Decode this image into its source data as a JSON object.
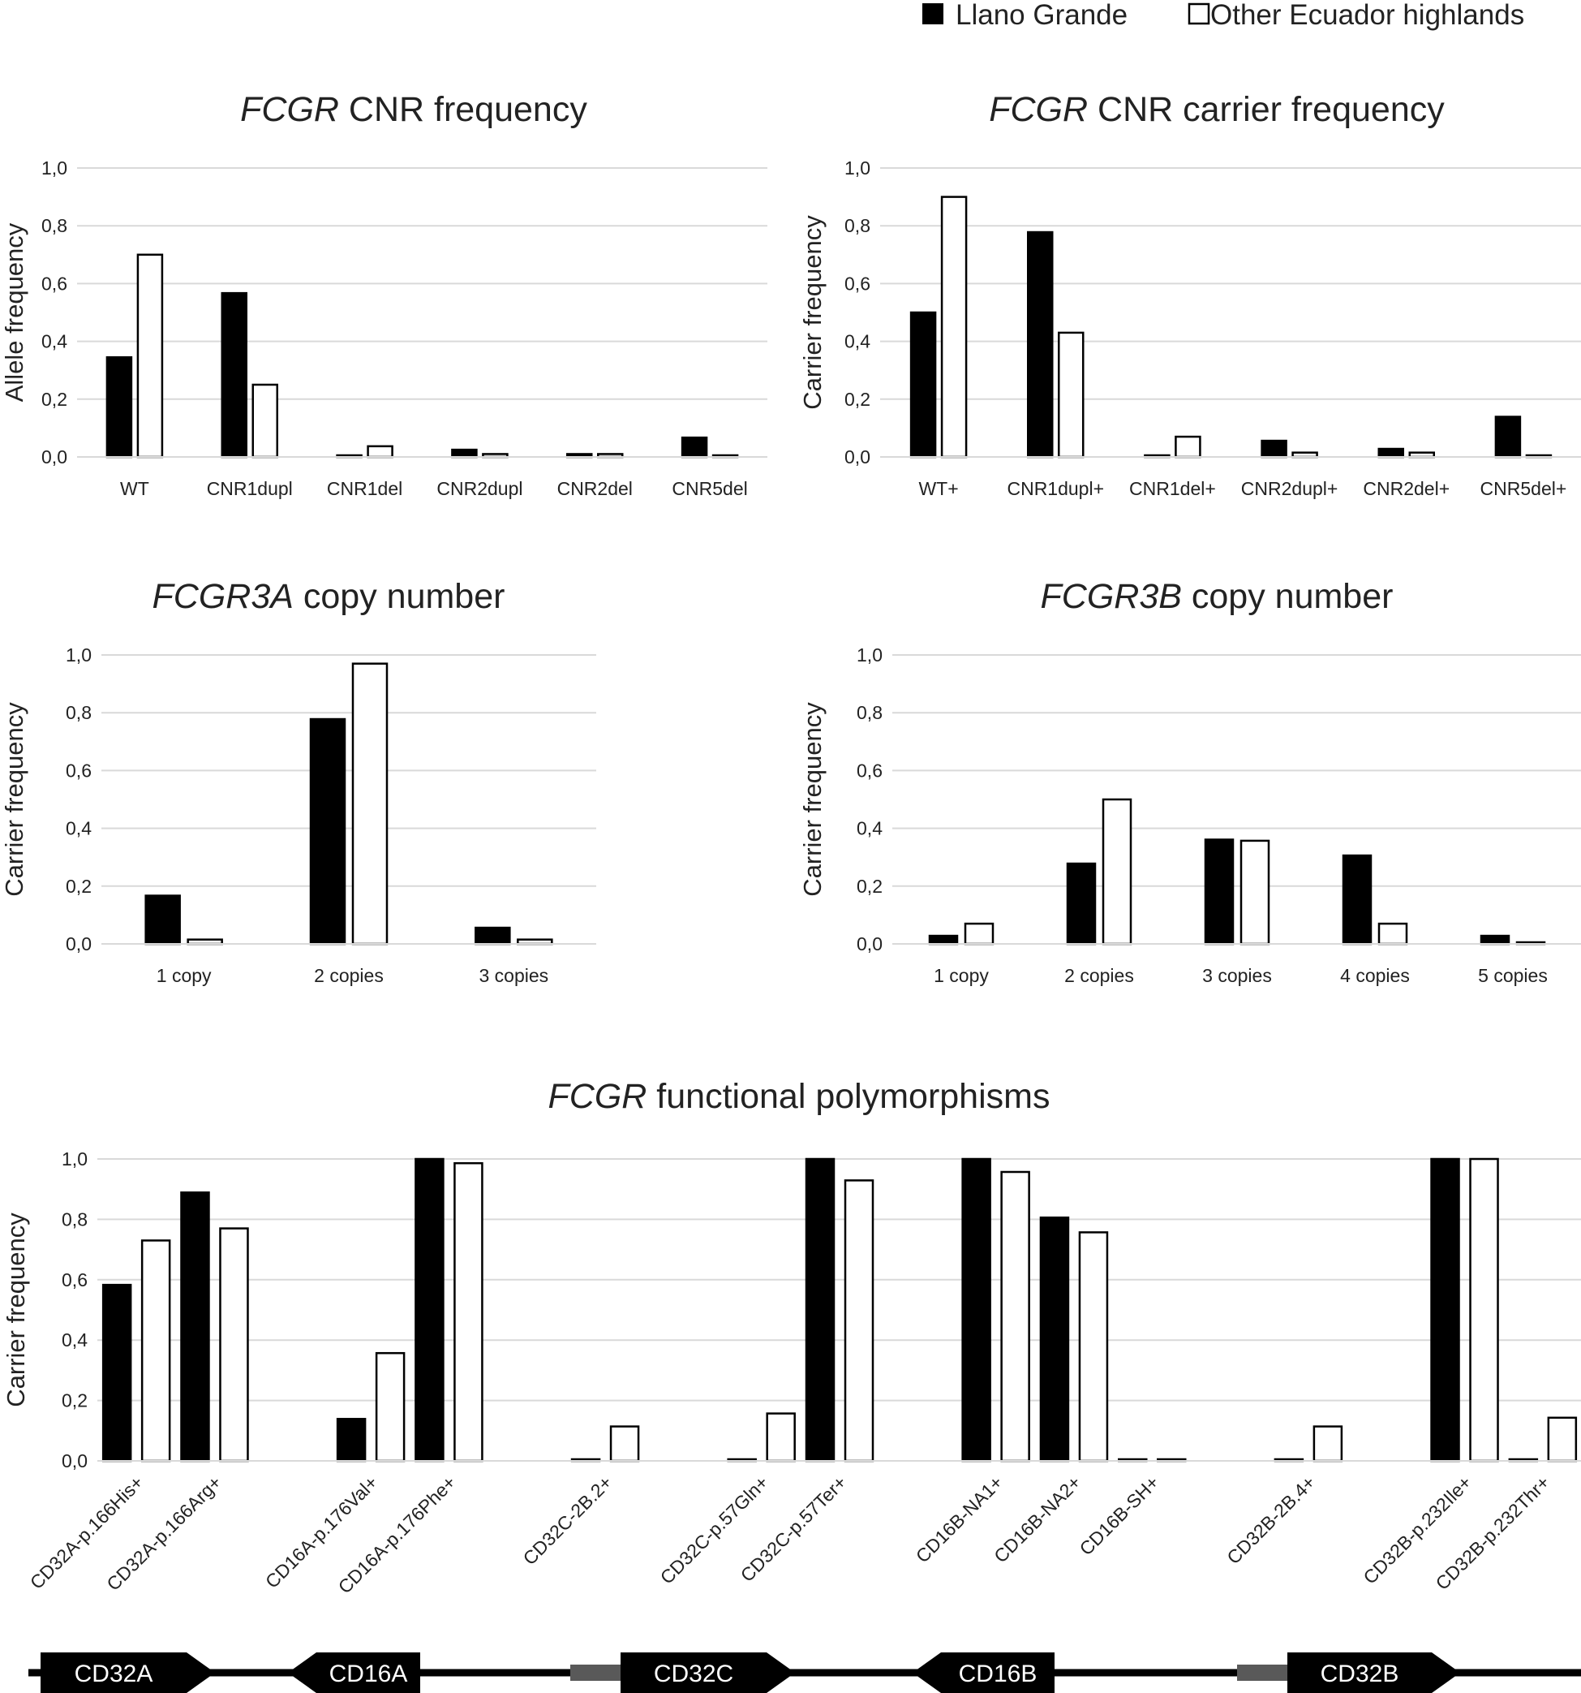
{
  "legend": {
    "items": [
      {
        "label": "Llano Grande",
        "fill": "#000000"
      },
      {
        "label": "Other Ecuador highlands",
        "fill": "#ffffff"
      }
    ]
  },
  "colors": {
    "series_a": "#000000",
    "series_b": "#ffffff",
    "stroke": "#000000",
    "grid": "#d9d9d9",
    "gene_body": "#000000",
    "pseudo": "#595959"
  },
  "chart_data": [
    {
      "id": "cnr",
      "type": "bar",
      "title_italic": "FCGR",
      "title_rest": " CNR frequency",
      "ylabel": "Allele frequency",
      "ylim": [
        0,
        1
      ],
      "yticks": [
        "0,0",
        "0,2",
        "0,4",
        "0,6",
        "0,8",
        "1,0"
      ],
      "categories": [
        "WT",
        "CNR1dupl",
        "CNR1del",
        "CNR2dupl",
        "CNR2del",
        "CNR5del"
      ],
      "series": [
        {
          "name": "Llano Grande",
          "values": [
            0.345,
            0.567,
            0,
            0.025,
            0.01,
            0.067
          ]
        },
        {
          "name": "Other Ecuador highlands",
          "values": [
            0.7,
            0.25,
            0.037,
            0.01,
            0.01,
            0
          ]
        }
      ]
    },
    {
      "id": "cnrc",
      "type": "bar",
      "title_italic": "FCGR",
      "title_rest": " CNR carrier frequency",
      "ylabel": "Carrier frequency",
      "ylim": [
        0,
        1
      ],
      "yticks": [
        "0,0",
        "0,2",
        "0,4",
        "0,6",
        "0,8",
        "1,0"
      ],
      "categories": [
        "WT+",
        "CNR1dupl+",
        "CNR1del+",
        "CNR2dupl+",
        "CNR2del+",
        "CNR5del+"
      ],
      "series": [
        {
          "name": "Llano Grande",
          "values": [
            0.5,
            0.778,
            0,
            0.056,
            0.028,
            0.139
          ]
        },
        {
          "name": "Other Ecuador highlands",
          "values": [
            0.9,
            0.43,
            0.07,
            0.015,
            0.015,
            0
          ]
        }
      ]
    },
    {
      "id": "cn3a",
      "type": "bar",
      "title_italic": "FCGR3A",
      "title_rest": " copy number",
      "ylabel": "Carrier frequency",
      "ylim": [
        0,
        1
      ],
      "yticks": [
        "0,0",
        "0,2",
        "0,4",
        "0,6",
        "0,8",
        "1,0"
      ],
      "categories": [
        "1 copy",
        "2 copies",
        "3 copies"
      ],
      "series": [
        {
          "name": "Llano Grande",
          "values": [
            0.167,
            0.778,
            0.056
          ]
        },
        {
          "name": "Other Ecuador highlands",
          "values": [
            0.015,
            0.97,
            0.015
          ]
        }
      ]
    },
    {
      "id": "cn3b",
      "type": "bar",
      "title_italic": "FCGR3B",
      "title_rest": " copy number",
      "ylabel": "Carrier frequency",
      "ylim": [
        0,
        1
      ],
      "yticks": [
        "0,0",
        "0,2",
        "0,4",
        "0,6",
        "0,8",
        "1,0"
      ],
      "categories": [
        "1 copy",
        "2 copies",
        "3 copies",
        "4 copies",
        "5 copies"
      ],
      "series": [
        {
          "name": "Llano Grande",
          "values": [
            0.028,
            0.278,
            0.361,
            0.306,
            0.028
          ]
        },
        {
          "name": "Other Ecuador highlands",
          "values": [
            0.07,
            0.5,
            0.357,
            0.07,
            0
          ]
        }
      ]
    },
    {
      "id": "poly",
      "type": "bar",
      "title_italic": "FCGR",
      "title_rest": " functional polymorphisms",
      "ylabel": "Carrier frequency",
      "ylim": [
        0,
        1
      ],
      "yticks": [
        "0,0",
        "0,2",
        "0,4",
        "0,6",
        "0,8",
        "1,0"
      ],
      "categories": [
        "CD32A-p.166His+",
        "CD32A-p.166Arg+",
        "",
        "CD16A-p.176Val+",
        "CD16A-p.176Phe+",
        "",
        "CD32C-2B.2+",
        "",
        "CD32C-p.57Gln+",
        "CD32C-p.57Ter+",
        "",
        "CD16B-NA1+",
        "CD16B-NA2+",
        "CD16B-SH+",
        "",
        "CD32B-2B.4+",
        "",
        "CD32B-p.232Ile+",
        "CD32B-p.232Thr+"
      ],
      "series": [
        {
          "name": "Llano Grande",
          "values": [
            0.583,
            0.889,
            null,
            0.139,
            1.0,
            null,
            0,
            null,
            0,
            1.0,
            null,
            1.0,
            0.806,
            0,
            null,
            0,
            null,
            1.0,
            0
          ]
        },
        {
          "name": "Other Ecuador highlands",
          "values": [
            0.73,
            0.77,
            null,
            0.357,
            0.986,
            null,
            0.114,
            null,
            0.157,
            0.929,
            null,
            0.957,
            0.757,
            0,
            null,
            0.114,
            null,
            1.0,
            0.143
          ]
        }
      ]
    }
  ],
  "gene_map": {
    "genes": [
      {
        "label": "CD32A",
        "dir": "right"
      },
      {
        "label": "CD16A",
        "dir": "left"
      },
      {
        "label": "CD32C",
        "dir": "right"
      },
      {
        "label": "CD16B",
        "dir": "left"
      },
      {
        "label": "CD32B",
        "dir": "right"
      }
    ]
  }
}
